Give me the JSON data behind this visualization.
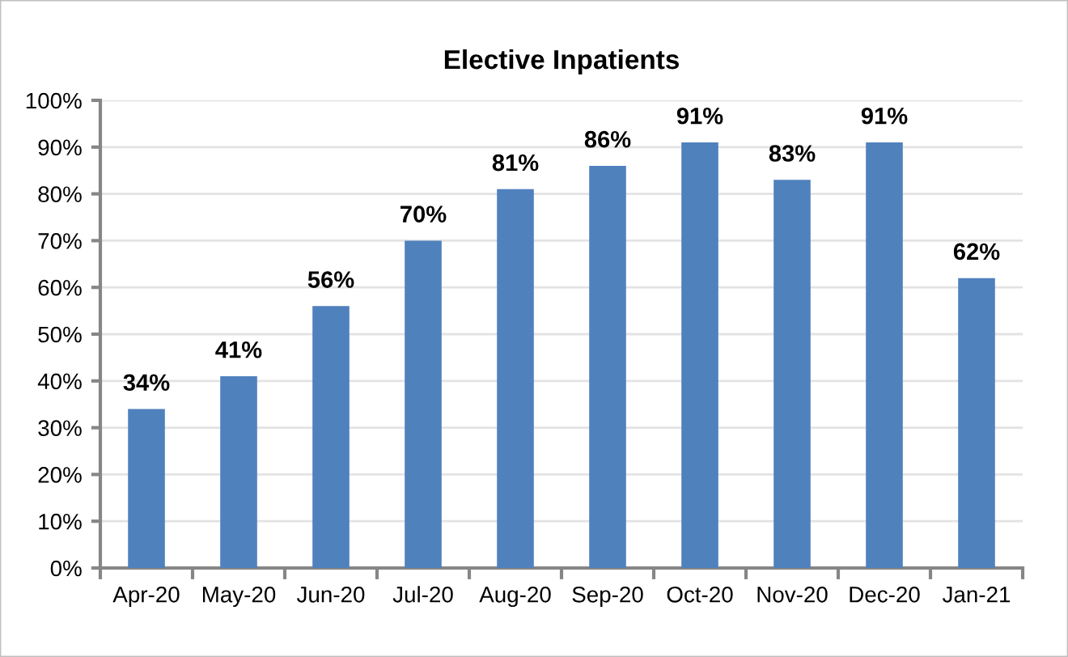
{
  "chart_data": {
    "type": "bar",
    "title": "Elective Inpatients",
    "categories": [
      "Apr-20",
      "May-20",
      "Jun-20",
      "Jul-20",
      "Aug-20",
      "Sep-20",
      "Oct-20",
      "Nov-20",
      "Dec-20",
      "Jan-21"
    ],
    "values": [
      34,
      41,
      56,
      70,
      81,
      86,
      91,
      83,
      91,
      62
    ],
    "value_labels": [
      "34%",
      "41%",
      "56%",
      "70%",
      "81%",
      "86%",
      "91%",
      "83%",
      "91%",
      "62%"
    ],
    "color": "#4f81bd",
    "ylim": [
      0,
      100
    ],
    "yticks": [
      {
        "value": 0,
        "label": "0%"
      },
      {
        "value": 10,
        "label": "10%"
      },
      {
        "value": 20,
        "label": "20%"
      },
      {
        "value": 30,
        "label": "30%"
      },
      {
        "value": 40,
        "label": "40%"
      },
      {
        "value": 50,
        "label": "50%"
      },
      {
        "value": 60,
        "label": "60%"
      },
      {
        "value": 70,
        "label": "70%"
      },
      {
        "value": 80,
        "label": "80%"
      },
      {
        "value": 90,
        "label": "90%"
      },
      {
        "value": 100,
        "label": "100%"
      }
    ],
    "grid": "y",
    "legend": false
  }
}
